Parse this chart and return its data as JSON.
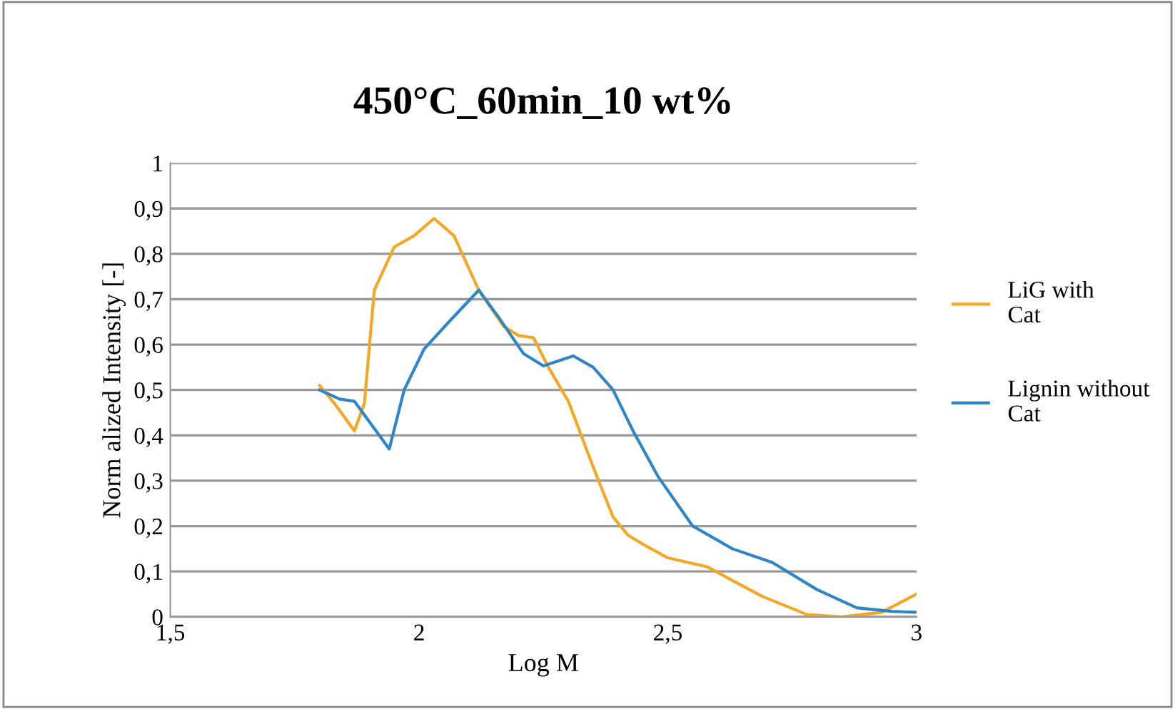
{
  "chart_data": {
    "type": "line",
    "title": "450°C_60min_10 wt%",
    "xlabel": "Log M",
    "ylabel": "Norm alized Intensity [-]",
    "xlim": [
      1.5,
      3
    ],
    "xticks": [
      {
        "value": 1.5,
        "label": "1,5"
      },
      {
        "value": 2,
        "label": "2"
      },
      {
        "value": 2.5,
        "label": "2,5"
      },
      {
        "value": 3,
        "label": "3"
      }
    ],
    "ylim": [
      0,
      1
    ],
    "yticks": [
      0,
      {
        "value": 0.1,
        "label": "0,1"
      },
      {
        "value": 0.2,
        "label": "0,2"
      },
      {
        "value": 0.3,
        "label": "0,3"
      },
      {
        "value": 0.4,
        "label": "0,4"
      },
      {
        "value": 0.5,
        "label": "0,5"
      },
      {
        "value": 0.6,
        "label": "0,6"
      },
      {
        "value": 0.7,
        "label": "0,7"
      },
      {
        "value": 0.8,
        "label": "0,8"
      },
      {
        "value": 0.9,
        "label": "0,9"
      },
      1
    ],
    "grid": "y",
    "legend": "right",
    "marker": "none",
    "line_style": "solid",
    "series": [
      {
        "name": "LiG with Cat",
        "color": "#f5a623",
        "x": [
          1.8,
          1.83,
          1.87,
          1.89,
          1.91,
          1.95,
          1.99,
          2.03,
          2.07,
          2.12,
          2.17,
          2.2,
          2.23,
          2.26,
          2.3,
          2.35,
          2.39,
          2.42,
          2.45,
          2.5,
          2.58,
          2.63,
          2.69,
          2.78,
          2.85,
          2.93,
          3.0
        ],
        "values": [
          0.51,
          0.47,
          0.41,
          0.47,
          0.72,
          0.815,
          0.84,
          0.878,
          0.84,
          0.72,
          0.64,
          0.62,
          0.615,
          0.55,
          0.475,
          0.33,
          0.22,
          0.18,
          0.16,
          0.13,
          0.11,
          0.08,
          0.045,
          0.005,
          0.0,
          0.01,
          0.05
        ]
      },
      {
        "name": "Lignin without Cat",
        "color": "#2e86c8",
        "x": [
          1.8,
          1.84,
          1.87,
          1.9,
          1.94,
          1.97,
          2.01,
          2.06,
          2.12,
          2.16,
          2.21,
          2.25,
          2.31,
          2.35,
          2.39,
          2.43,
          2.48,
          2.55,
          2.63,
          2.71,
          2.8,
          2.88,
          2.95,
          3.0
        ],
        "values": [
          0.5,
          0.48,
          0.475,
          0.43,
          0.37,
          0.5,
          0.59,
          0.65,
          0.72,
          0.66,
          0.58,
          0.553,
          0.575,
          0.55,
          0.5,
          0.41,
          0.31,
          0.2,
          0.15,
          0.12,
          0.06,
          0.02,
          0.012,
          0.01
        ]
      }
    ]
  }
}
